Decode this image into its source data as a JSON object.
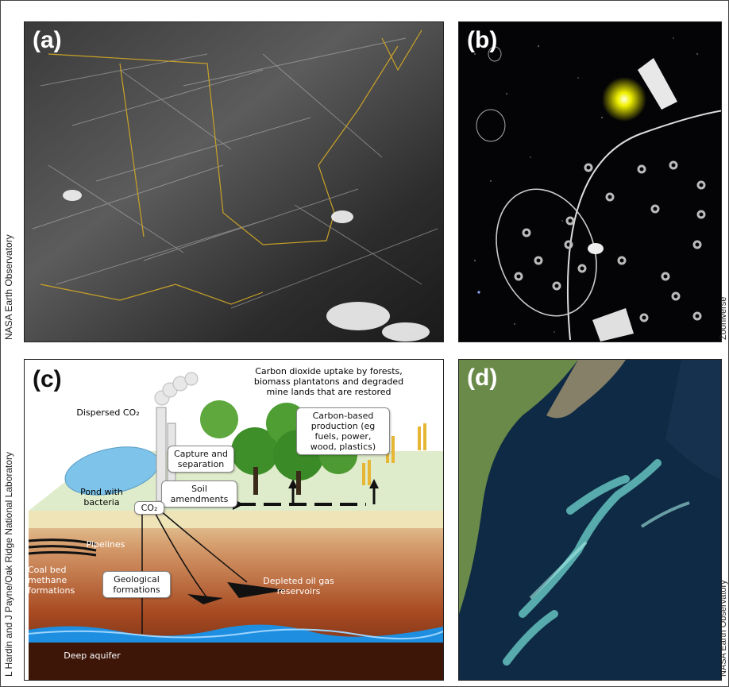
{
  "panels": {
    "a": {
      "label": "(a)",
      "credit": "NASA Earth Observatory"
    },
    "b": {
      "label": "(b)",
      "credit": "Zooniverse"
    },
    "c": {
      "label": "(c)",
      "credit": "L Hardin and J Payne/Oak Ridge National Laboratory",
      "texts": {
        "uptake": "Carbon dioxide uptake by forests, biomass plantatons and degraded mine lands that are restored",
        "dispersed": "Dispersed CO₂",
        "capture": "Capture and separation",
        "carbon_based": "Carbon-based production (eg fuels, power, wood, plastics)",
        "soil": "Soil amendments",
        "pond": "Pond with bacteria",
        "co2": "CO₂",
        "pipelines": "Pipelines",
        "coal_bed": "Coal bed methane formations",
        "geological": "Geological formations",
        "depleted": "Depleted oil gas reservoirs",
        "aquifer": "Deep aquifer"
      }
    },
    "d": {
      "label": "(d)",
      "credit": "NASA Earth Observatory"
    }
  }
}
